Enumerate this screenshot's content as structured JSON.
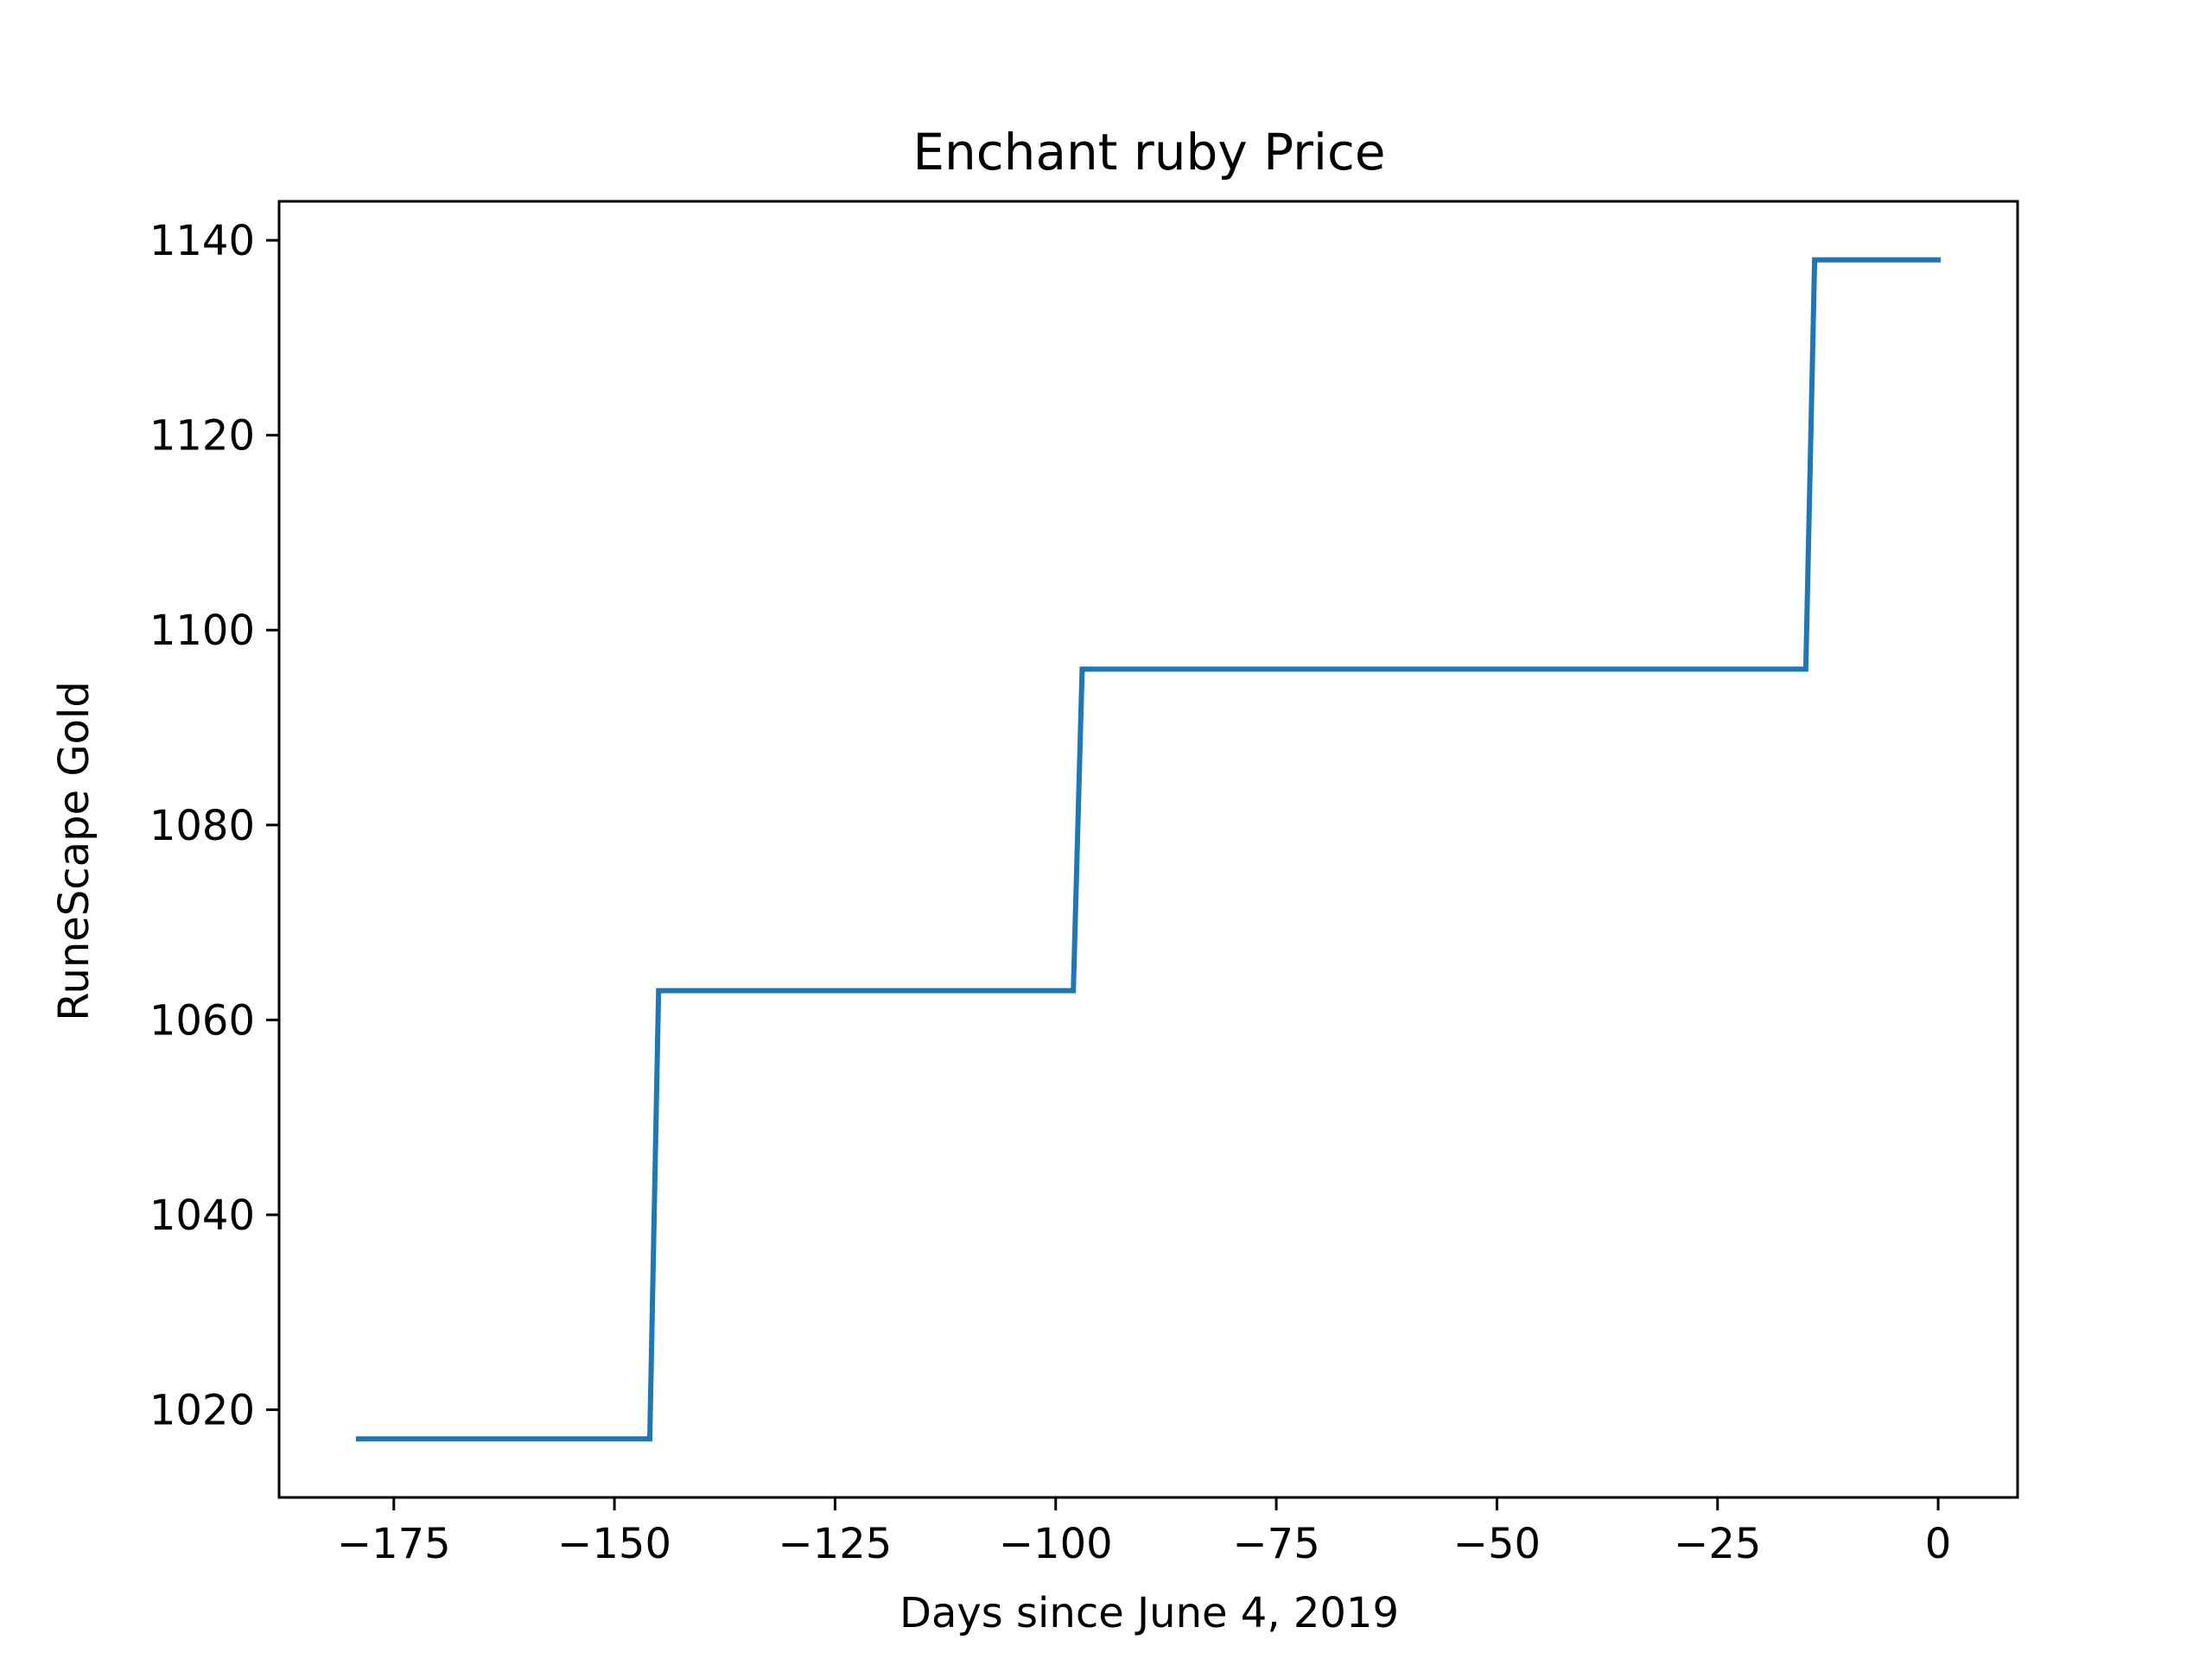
{
  "chart_data": {
    "type": "line",
    "title": "Enchant ruby Price",
    "xlabel": "Days since June 4, 2019",
    "ylabel": "RuneScape Gold",
    "xlim": [
      -188,
      9
    ],
    "ylim": [
      1011,
      1144
    ],
    "xticks": [
      -175,
      -150,
      -125,
      -100,
      -75,
      -50,
      -25,
      0
    ],
    "xtick_labels": [
      "−175",
      "−150",
      "−125",
      "−100",
      "−75",
      "−50",
      "−25",
      "0"
    ],
    "yticks": [
      1020,
      1040,
      1060,
      1080,
      1100,
      1120,
      1140
    ],
    "ytick_labels": [
      "1020",
      "1040",
      "1060",
      "1080",
      "1100",
      "1120",
      "1140"
    ],
    "grid": false,
    "legend": "none",
    "series": [
      {
        "color": "#1f77b4",
        "x": [
          -179,
          -146,
          -145,
          -98,
          -97,
          -15,
          -14,
          0
        ],
        "y": [
          1017,
          1017,
          1063,
          1063,
          1096,
          1096,
          1138,
          1138
        ]
      }
    ]
  }
}
